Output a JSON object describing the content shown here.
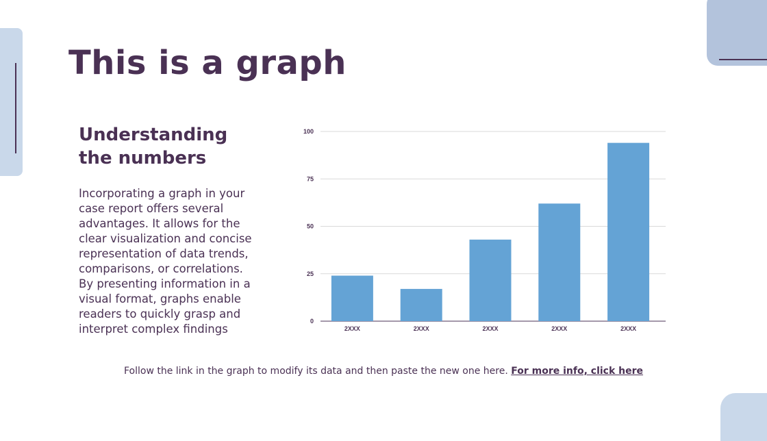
{
  "slide": {
    "title": "This is a graph",
    "subtitle": "Understanding the numbers",
    "body": "Incorporating a graph in your case report offers several advantages. It allows for the clear visualization and concise representation of data trends, comparisons, or correlations. By presenting information in a visual format, graphs enable readers to quickly grasp and interpret complex findings",
    "footer_text": "Follow the link in the graph to modify its data and then paste the new one here.",
    "footer_link": "For more info, click here"
  },
  "colors": {
    "text": "#4a3154",
    "bar": "#64a3d5",
    "accent_light": "#c9d8ea",
    "accent_mid": "#b3c3dc"
  },
  "chart_data": {
    "type": "bar",
    "categories": [
      "2XXX",
      "2XXX",
      "2XXX",
      "2XXX",
      "2XXX"
    ],
    "values": [
      24,
      17,
      43,
      62,
      94
    ],
    "yticks": [
      0,
      25,
      50,
      75,
      100
    ],
    "ylim": [
      0,
      100
    ],
    "title": "",
    "xlabel": "",
    "ylabel": "",
    "grid": true
  }
}
